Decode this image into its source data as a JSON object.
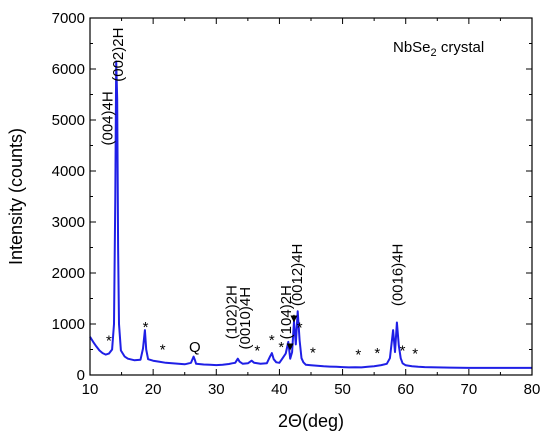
{
  "chart_data": {
    "type": "line",
    "title": "",
    "inset_label": {
      "main": "NbSe",
      "sub": "2",
      "rest": " crystal"
    },
    "xlabel": "2Θ(deg)",
    "ylabel": "Intensity (counts)",
    "xlim": [
      10,
      80
    ],
    "ylim": [
      0,
      7000
    ],
    "xticks": [
      10,
      20,
      30,
      40,
      50,
      60,
      70,
      80
    ],
    "yticks": [
      0,
      1000,
      2000,
      3000,
      4000,
      5000,
      6000,
      7000
    ],
    "grid": false,
    "line_color": "#1f1fe6",
    "series": [
      {
        "name": "",
        "x": [
          10.0,
          10.5,
          11.0,
          11.5,
          12.0,
          12.5,
          13.0,
          13.5,
          13.8,
          14.0,
          14.15,
          14.3,
          14.45,
          14.6,
          14.9,
          15.5,
          16,
          17,
          18,
          18.4,
          18.7,
          18.9,
          19.2,
          20,
          21,
          22,
          23,
          24,
          25,
          26,
          26.4,
          26.6,
          26.8,
          27.2,
          28,
          29,
          30,
          31,
          32,
          32.5,
          33,
          33.4,
          33.7,
          34.2,
          35,
          35.6,
          36,
          37,
          38,
          38.5,
          38.8,
          39.1,
          39.5,
          40,
          40.5,
          41,
          41.4,
          41.7,
          42,
          42.3,
          42.6,
          42.9,
          43.2,
          43.5,
          43.8,
          44.2,
          45,
          46,
          47,
          48,
          49,
          50,
          51,
          52,
          53,
          54,
          55,
          56,
          57,
          57.5,
          58,
          58.3,
          58.6,
          58.9,
          59.2,
          59.5,
          60,
          61,
          62,
          63,
          65,
          67,
          70,
          73,
          76,
          80
        ],
        "y": [
          750,
          650,
          560,
          480,
          430,
          400,
          420,
          500,
          1000,
          3500,
          6150,
          5400,
          2500,
          1000,
          480,
          360,
          320,
          290,
          300,
          520,
          880,
          500,
          310,
          280,
          260,
          240,
          230,
          220,
          210,
          240,
          360,
          300,
          220,
          215,
          205,
          200,
          195,
          200,
          215,
          230,
          240,
          320,
          260,
          220,
          230,
          280,
          240,
          220,
          230,
          360,
          430,
          310,
          250,
          240,
          330,
          420,
          650,
          320,
          450,
          1050,
          600,
          1250,
          680,
          330,
          250,
          200,
          190,
          180,
          170,
          165,
          160,
          155,
          150,
          152,
          150,
          160,
          170,
          190,
          220,
          330,
          880,
          450,
          1030,
          580,
          330,
          230,
          190,
          170,
          160,
          155,
          150,
          145,
          140,
          140,
          140,
          140
        ]
      }
    ],
    "peak_labels": [
      {
        "text": "(004)4H",
        "x": 13.6,
        "y": 4500
      },
      {
        "text": "(002)2H",
        "x": 15.2,
        "y": 5750
      },
      {
        "text": "Q",
        "x": 26.6,
        "y": 450
      },
      {
        "text": "(102)2H",
        "x": 33.2,
        "y": 700
      },
      {
        "text": "(0010)4H",
        "x": 35.3,
        "y": 500
      },
      {
        "text": "(104)2H",
        "x": 41.8,
        "y": 700
      },
      {
        "text": "(0012)4H",
        "x": 43.6,
        "y": 1350
      },
      {
        "text": "(0016)4H",
        "x": 59.5,
        "y": 1350
      }
    ],
    "star_markers": [
      13,
      18.8,
      21.5,
      36.5,
      38.8,
      40.3,
      43.2,
      45.3,
      52.5,
      55.5,
      59.5,
      61.5
    ],
    "arrows": [
      {
        "x": 41.7,
        "y_from": 600,
        "y_to": 480
      },
      {
        "x": 42.3,
        "y_from": 1180,
        "y_to": 1030
      }
    ]
  }
}
